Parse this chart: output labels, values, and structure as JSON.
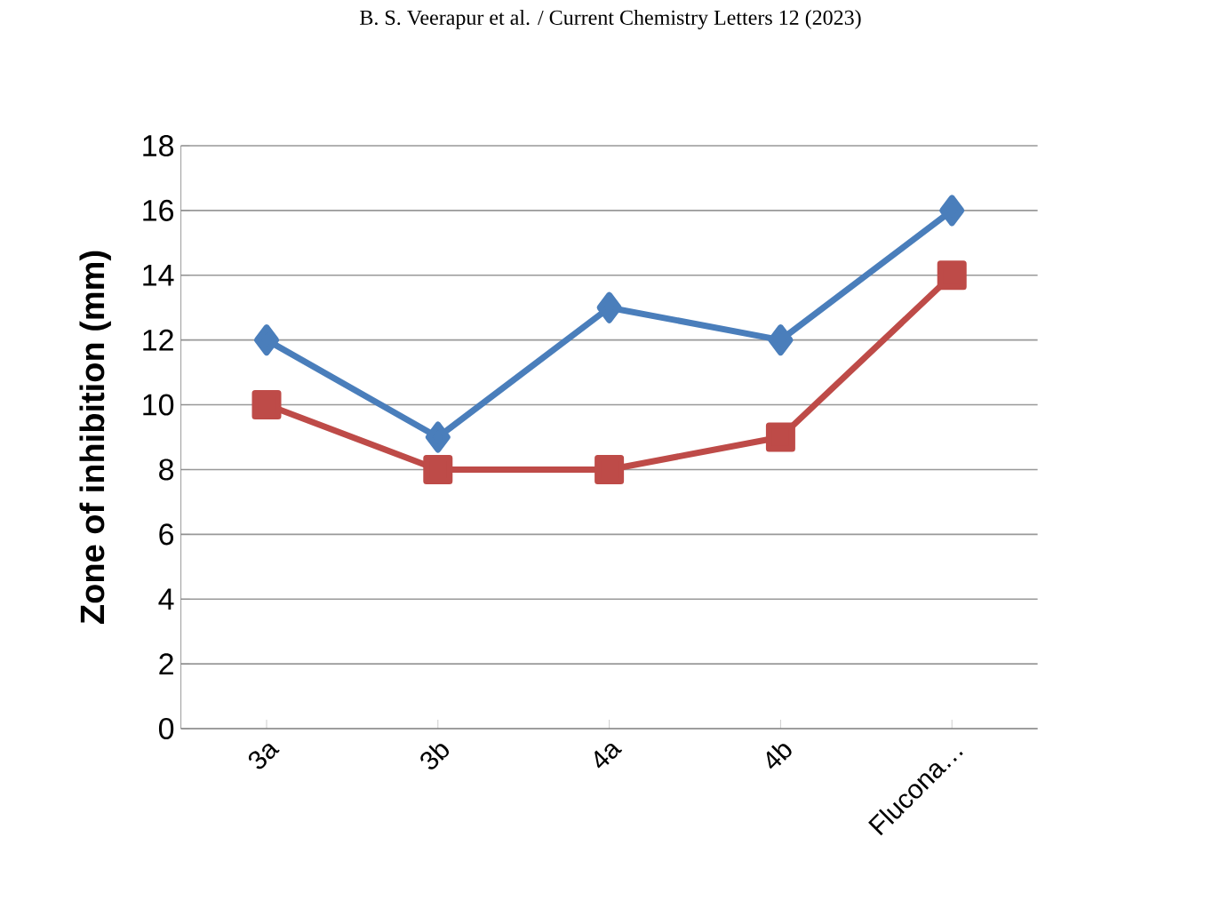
{
  "chart_data": {
    "type": "line",
    "ylabel": "Zone of inhibition (mm)",
    "annotations": [
      "B. S. Veerapur et al.  / Current Chemistry Letters 12 (2023)"
    ],
    "categories": [
      "3a",
      "3b",
      "4a",
      "4b",
      "Flucona…"
    ],
    "series": [
      {
        "color": "#4a7ebb",
        "marker": "diamond",
        "values": [
          12,
          9,
          13,
          12,
          16
        ]
      },
      {
        "color": "#be4b48",
        "marker": "square",
        "values": [
          10,
          8,
          8,
          9,
          14
        ]
      }
    ],
    "ylim": [
      0,
      18
    ],
    "yticks": [
      0,
      2,
      4,
      6,
      8,
      10,
      12,
      14,
      16,
      18
    ],
    "grid": "y",
    "line_style": "solid"
  }
}
